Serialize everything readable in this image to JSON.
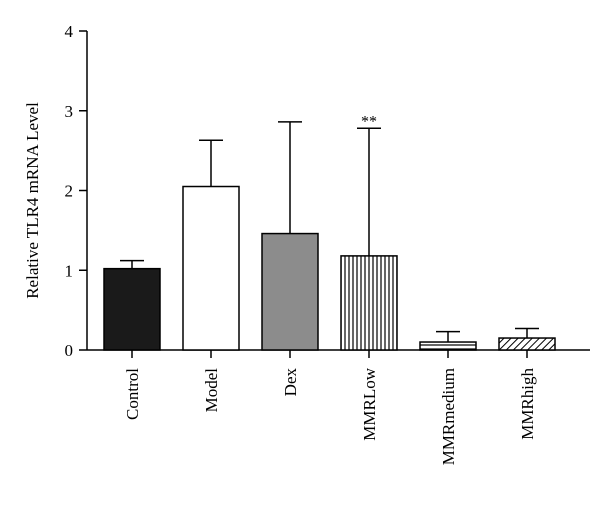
{
  "chart_data": {
    "type": "bar",
    "title": "",
    "xlabel": "",
    "ylabel": "Relative TLR4 mRNA Level",
    "ylim": [
      0,
      4
    ],
    "yticks": [
      "0",
      "1",
      "2",
      "3",
      "4"
    ],
    "categories": [
      "Control",
      "Model",
      "Dex",
      "MMRLow",
      "MMRmedium",
      "MMRhigh"
    ],
    "values": [
      1.02,
      2.05,
      1.46,
      1.18,
      0.1,
      0.15
    ],
    "error_upper": [
      1.12,
      2.63,
      2.86,
      2.78,
      0.23,
      0.27
    ],
    "fills": [
      "#1a1a1a",
      "#ffffff",
      "#8c8c8c",
      "vertical-stripes",
      "horizontal-stripes",
      "diagonal-stripes"
    ],
    "annotations": [
      {
        "category": "MMRLow",
        "text": "**"
      }
    ],
    "grid": false,
    "legend": "none"
  }
}
